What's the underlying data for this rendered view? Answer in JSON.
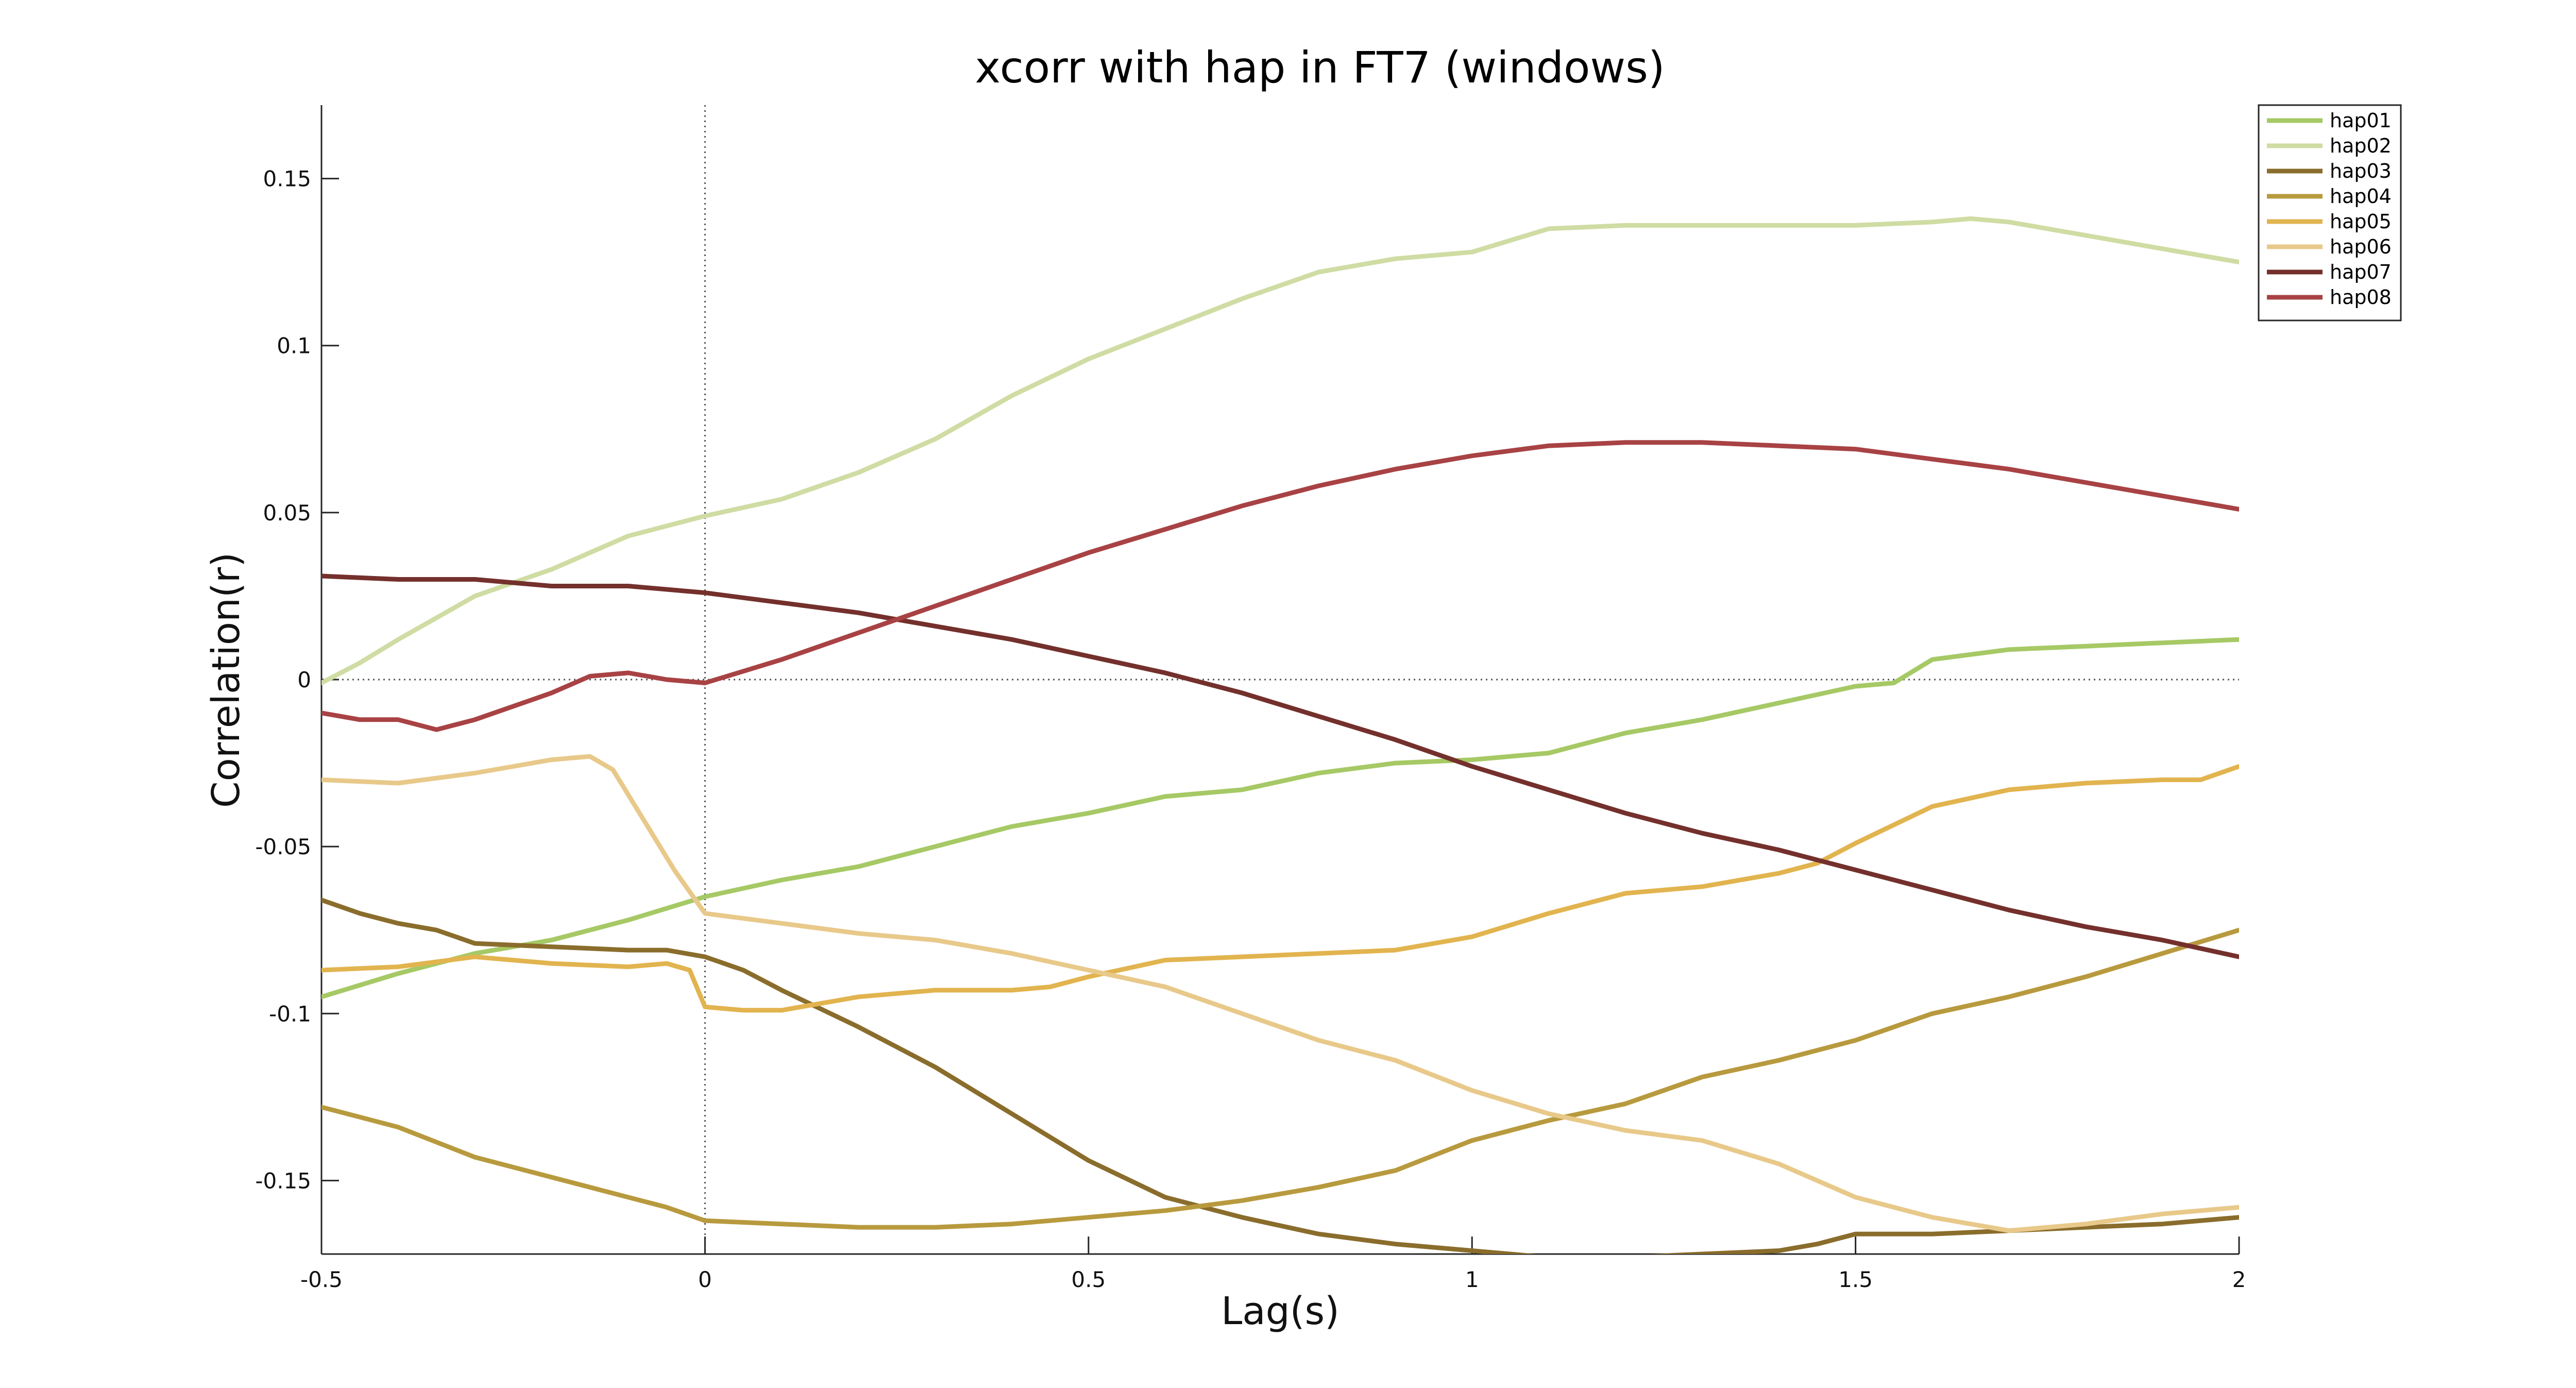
{
  "chart_data": {
    "type": "line",
    "title": "xcorr with hap in FT7 (windows)",
    "xlabel": "Lag(s)",
    "ylabel": "Correlation(r)",
    "xlim": [
      -0.5,
      2
    ],
    "ylim": [
      -0.172,
      0.172
    ],
    "xticks": [
      -0.5,
      0,
      0.5,
      1,
      1.5,
      2
    ],
    "xtick_labels": [
      "-0.5",
      "0",
      "0.5",
      "1",
      "1.5",
      "2"
    ],
    "yticks": [
      -0.15,
      -0.1,
      -0.05,
      0,
      0.05,
      0.1,
      0.15
    ],
    "ytick_labels": [
      "-0.15",
      "-0.1",
      "-0.05",
      "0",
      "0.05",
      "0.1",
      "0.15"
    ],
    "grid": false,
    "legend_position": "top-right",
    "reference_lines": {
      "x": 0,
      "y": 0
    },
    "series": [
      {
        "name": "hap01",
        "color": "#a6c965",
        "points": [
          [
            -0.5,
            -0.095
          ],
          [
            -0.4,
            -0.088
          ],
          [
            -0.3,
            -0.082
          ],
          [
            -0.2,
            -0.078
          ],
          [
            -0.1,
            -0.072
          ],
          [
            0,
            -0.065
          ],
          [
            0.1,
            -0.06
          ],
          [
            0.2,
            -0.056
          ],
          [
            0.3,
            -0.05
          ],
          [
            0.4,
            -0.044
          ],
          [
            0.5,
            -0.04
          ],
          [
            0.6,
            -0.035
          ],
          [
            0.7,
            -0.033
          ],
          [
            0.8,
            -0.028
          ],
          [
            0.9,
            -0.025
          ],
          [
            1.0,
            -0.024
          ],
          [
            1.1,
            -0.022
          ],
          [
            1.2,
            -0.016
          ],
          [
            1.3,
            -0.012
          ],
          [
            1.4,
            -0.007
          ],
          [
            1.5,
            -0.002
          ],
          [
            1.55,
            -0.001
          ],
          [
            1.6,
            0.006
          ],
          [
            1.7,
            0.009
          ],
          [
            1.8,
            0.01
          ],
          [
            1.9,
            0.011
          ],
          [
            2.0,
            0.012
          ]
        ]
      },
      {
        "name": "hap02",
        "color": "#cfdca3",
        "points": [
          [
            -0.5,
            -0.001
          ],
          [
            -0.45,
            0.005
          ],
          [
            -0.4,
            0.012
          ],
          [
            -0.3,
            0.025
          ],
          [
            -0.2,
            0.033
          ],
          [
            -0.1,
            0.043
          ],
          [
            0,
            0.049
          ],
          [
            0.1,
            0.054
          ],
          [
            0.2,
            0.062
          ],
          [
            0.3,
            0.072
          ],
          [
            0.4,
            0.085
          ],
          [
            0.5,
            0.096
          ],
          [
            0.6,
            0.105
          ],
          [
            0.7,
            0.114
          ],
          [
            0.8,
            0.122
          ],
          [
            0.9,
            0.126
          ],
          [
            1.0,
            0.128
          ],
          [
            1.1,
            0.135
          ],
          [
            1.2,
            0.136
          ],
          [
            1.3,
            0.136
          ],
          [
            1.4,
            0.136
          ],
          [
            1.5,
            0.136
          ],
          [
            1.6,
            0.137
          ],
          [
            1.65,
            0.138
          ],
          [
            1.7,
            0.137
          ],
          [
            1.8,
            0.133
          ],
          [
            1.9,
            0.129
          ],
          [
            2.0,
            0.125
          ]
        ]
      },
      {
        "name": "hap03",
        "color": "#8a6d2c",
        "points": [
          [
            -0.5,
            -0.066
          ],
          [
            -0.45,
            -0.07
          ],
          [
            -0.4,
            -0.073
          ],
          [
            -0.35,
            -0.075
          ],
          [
            -0.3,
            -0.079
          ],
          [
            -0.2,
            -0.08
          ],
          [
            -0.1,
            -0.081
          ],
          [
            -0.05,
            -0.081
          ],
          [
            0,
            -0.083
          ],
          [
            0.05,
            -0.087
          ],
          [
            0.1,
            -0.093
          ],
          [
            0.2,
            -0.104
          ],
          [
            0.3,
            -0.116
          ],
          [
            0.4,
            -0.13
          ],
          [
            0.5,
            -0.144
          ],
          [
            0.6,
            -0.155
          ],
          [
            0.7,
            -0.161
          ],
          [
            0.8,
            -0.166
          ],
          [
            0.9,
            -0.169
          ],
          [
            1.0,
            -0.171
          ],
          [
            1.1,
            -0.173
          ],
          [
            1.2,
            -0.173
          ],
          [
            1.3,
            -0.172
          ],
          [
            1.4,
            -0.171
          ],
          [
            1.45,
            -0.169
          ],
          [
            1.5,
            -0.166
          ],
          [
            1.6,
            -0.166
          ],
          [
            1.7,
            -0.165
          ],
          [
            1.8,
            -0.164
          ],
          [
            1.9,
            -0.163
          ],
          [
            2.0,
            -0.161
          ]
        ]
      },
      {
        "name": "hap04",
        "color": "#b89a3e",
        "points": [
          [
            -0.5,
            -0.128
          ],
          [
            -0.45,
            -0.131
          ],
          [
            -0.4,
            -0.134
          ],
          [
            -0.3,
            -0.143
          ],
          [
            -0.2,
            -0.149
          ],
          [
            -0.1,
            -0.155
          ],
          [
            -0.05,
            -0.158
          ],
          [
            0,
            -0.162
          ],
          [
            0.1,
            -0.163
          ],
          [
            0.2,
            -0.164
          ],
          [
            0.3,
            -0.164
          ],
          [
            0.4,
            -0.163
          ],
          [
            0.5,
            -0.161
          ],
          [
            0.6,
            -0.159
          ],
          [
            0.7,
            -0.156
          ],
          [
            0.8,
            -0.152
          ],
          [
            0.9,
            -0.147
          ],
          [
            1.0,
            -0.138
          ],
          [
            1.1,
            -0.132
          ],
          [
            1.2,
            -0.127
          ],
          [
            1.3,
            -0.119
          ],
          [
            1.4,
            -0.114
          ],
          [
            1.5,
            -0.108
          ],
          [
            1.6,
            -0.1
          ],
          [
            1.7,
            -0.095
          ],
          [
            1.8,
            -0.089
          ],
          [
            1.9,
            -0.082
          ],
          [
            2.0,
            -0.075
          ]
        ]
      },
      {
        "name": "hap05",
        "color": "#e2b44f",
        "points": [
          [
            -0.5,
            -0.087
          ],
          [
            -0.4,
            -0.086
          ],
          [
            -0.3,
            -0.083
          ],
          [
            -0.2,
            -0.085
          ],
          [
            -0.1,
            -0.086
          ],
          [
            -0.05,
            -0.085
          ],
          [
            -0.02,
            -0.087
          ],
          [
            0,
            -0.098
          ],
          [
            0.05,
            -0.099
          ],
          [
            0.1,
            -0.099
          ],
          [
            0.15,
            -0.097
          ],
          [
            0.2,
            -0.095
          ],
          [
            0.3,
            -0.093
          ],
          [
            0.4,
            -0.093
          ],
          [
            0.45,
            -0.092
          ],
          [
            0.5,
            -0.089
          ],
          [
            0.6,
            -0.084
          ],
          [
            0.7,
            -0.083
          ],
          [
            0.8,
            -0.082
          ],
          [
            0.9,
            -0.081
          ],
          [
            1.0,
            -0.077
          ],
          [
            1.1,
            -0.07
          ],
          [
            1.2,
            -0.064
          ],
          [
            1.3,
            -0.062
          ],
          [
            1.4,
            -0.058
          ],
          [
            1.45,
            -0.055
          ],
          [
            1.5,
            -0.049
          ],
          [
            1.6,
            -0.038
          ],
          [
            1.7,
            -0.033
          ],
          [
            1.8,
            -0.031
          ],
          [
            1.9,
            -0.03
          ],
          [
            1.95,
            -0.03
          ],
          [
            2.0,
            -0.026
          ]
        ]
      },
      {
        "name": "hap06",
        "color": "#e8c98a",
        "points": [
          [
            -0.5,
            -0.03
          ],
          [
            -0.4,
            -0.031
          ],
          [
            -0.3,
            -0.028
          ],
          [
            -0.2,
            -0.024
          ],
          [
            -0.15,
            -0.023
          ],
          [
            -0.12,
            -0.027
          ],
          [
            -0.08,
            -0.042
          ],
          [
            -0.04,
            -0.057
          ],
          [
            0,
            -0.07
          ],
          [
            0.1,
            -0.073
          ],
          [
            0.2,
            -0.076
          ],
          [
            0.3,
            -0.078
          ],
          [
            0.4,
            -0.082
          ],
          [
            0.5,
            -0.087
          ],
          [
            0.6,
            -0.092
          ],
          [
            0.7,
            -0.1
          ],
          [
            0.8,
            -0.108
          ],
          [
            0.9,
            -0.114
          ],
          [
            1.0,
            -0.123
          ],
          [
            1.1,
            -0.13
          ],
          [
            1.2,
            -0.135
          ],
          [
            1.3,
            -0.138
          ],
          [
            1.4,
            -0.145
          ],
          [
            1.5,
            -0.155
          ],
          [
            1.6,
            -0.161
          ],
          [
            1.7,
            -0.165
          ],
          [
            1.8,
            -0.163
          ],
          [
            1.9,
            -0.16
          ],
          [
            2.0,
            -0.158
          ]
        ]
      },
      {
        "name": "hap07",
        "color": "#74302c",
        "points": [
          [
            -0.5,
            0.031
          ],
          [
            -0.4,
            0.03
          ],
          [
            -0.3,
            0.03
          ],
          [
            -0.2,
            0.028
          ],
          [
            -0.1,
            0.028
          ],
          [
            0,
            0.026
          ],
          [
            0.1,
            0.023
          ],
          [
            0.2,
            0.02
          ],
          [
            0.3,
            0.016
          ],
          [
            0.4,
            0.012
          ],
          [
            0.5,
            0.007
          ],
          [
            0.6,
            0.002
          ],
          [
            0.7,
            -0.004
          ],
          [
            0.8,
            -0.011
          ],
          [
            0.9,
            -0.018
          ],
          [
            1.0,
            -0.026
          ],
          [
            1.1,
            -0.033
          ],
          [
            1.2,
            -0.04
          ],
          [
            1.3,
            -0.046
          ],
          [
            1.4,
            -0.051
          ],
          [
            1.5,
            -0.057
          ],
          [
            1.6,
            -0.063
          ],
          [
            1.7,
            -0.069
          ],
          [
            1.8,
            -0.074
          ],
          [
            1.9,
            -0.078
          ],
          [
            2.0,
            -0.083
          ]
        ]
      },
      {
        "name": "hap08",
        "color": "#a84244",
        "points": [
          [
            -0.5,
            -0.01
          ],
          [
            -0.45,
            -0.012
          ],
          [
            -0.4,
            -0.012
          ],
          [
            -0.35,
            -0.015
          ],
          [
            -0.3,
            -0.012
          ],
          [
            -0.25,
            -0.008
          ],
          [
            -0.2,
            -0.004
          ],
          [
            -0.15,
            0.001
          ],
          [
            -0.1,
            0.002
          ],
          [
            -0.05,
            0
          ],
          [
            0,
            -0.001
          ],
          [
            0.1,
            0.006
          ],
          [
            0.2,
            0.014
          ],
          [
            0.3,
            0.022
          ],
          [
            0.4,
            0.03
          ],
          [
            0.5,
            0.038
          ],
          [
            0.6,
            0.045
          ],
          [
            0.7,
            0.052
          ],
          [
            0.8,
            0.058
          ],
          [
            0.9,
            0.063
          ],
          [
            1.0,
            0.067
          ],
          [
            1.1,
            0.07
          ],
          [
            1.2,
            0.071
          ],
          [
            1.3,
            0.071
          ],
          [
            1.4,
            0.07
          ],
          [
            1.5,
            0.069
          ],
          [
            1.6,
            0.066
          ],
          [
            1.7,
            0.063
          ],
          [
            1.8,
            0.059
          ],
          [
            1.9,
            0.055
          ],
          [
            2.0,
            0.051
          ]
        ]
      }
    ]
  }
}
